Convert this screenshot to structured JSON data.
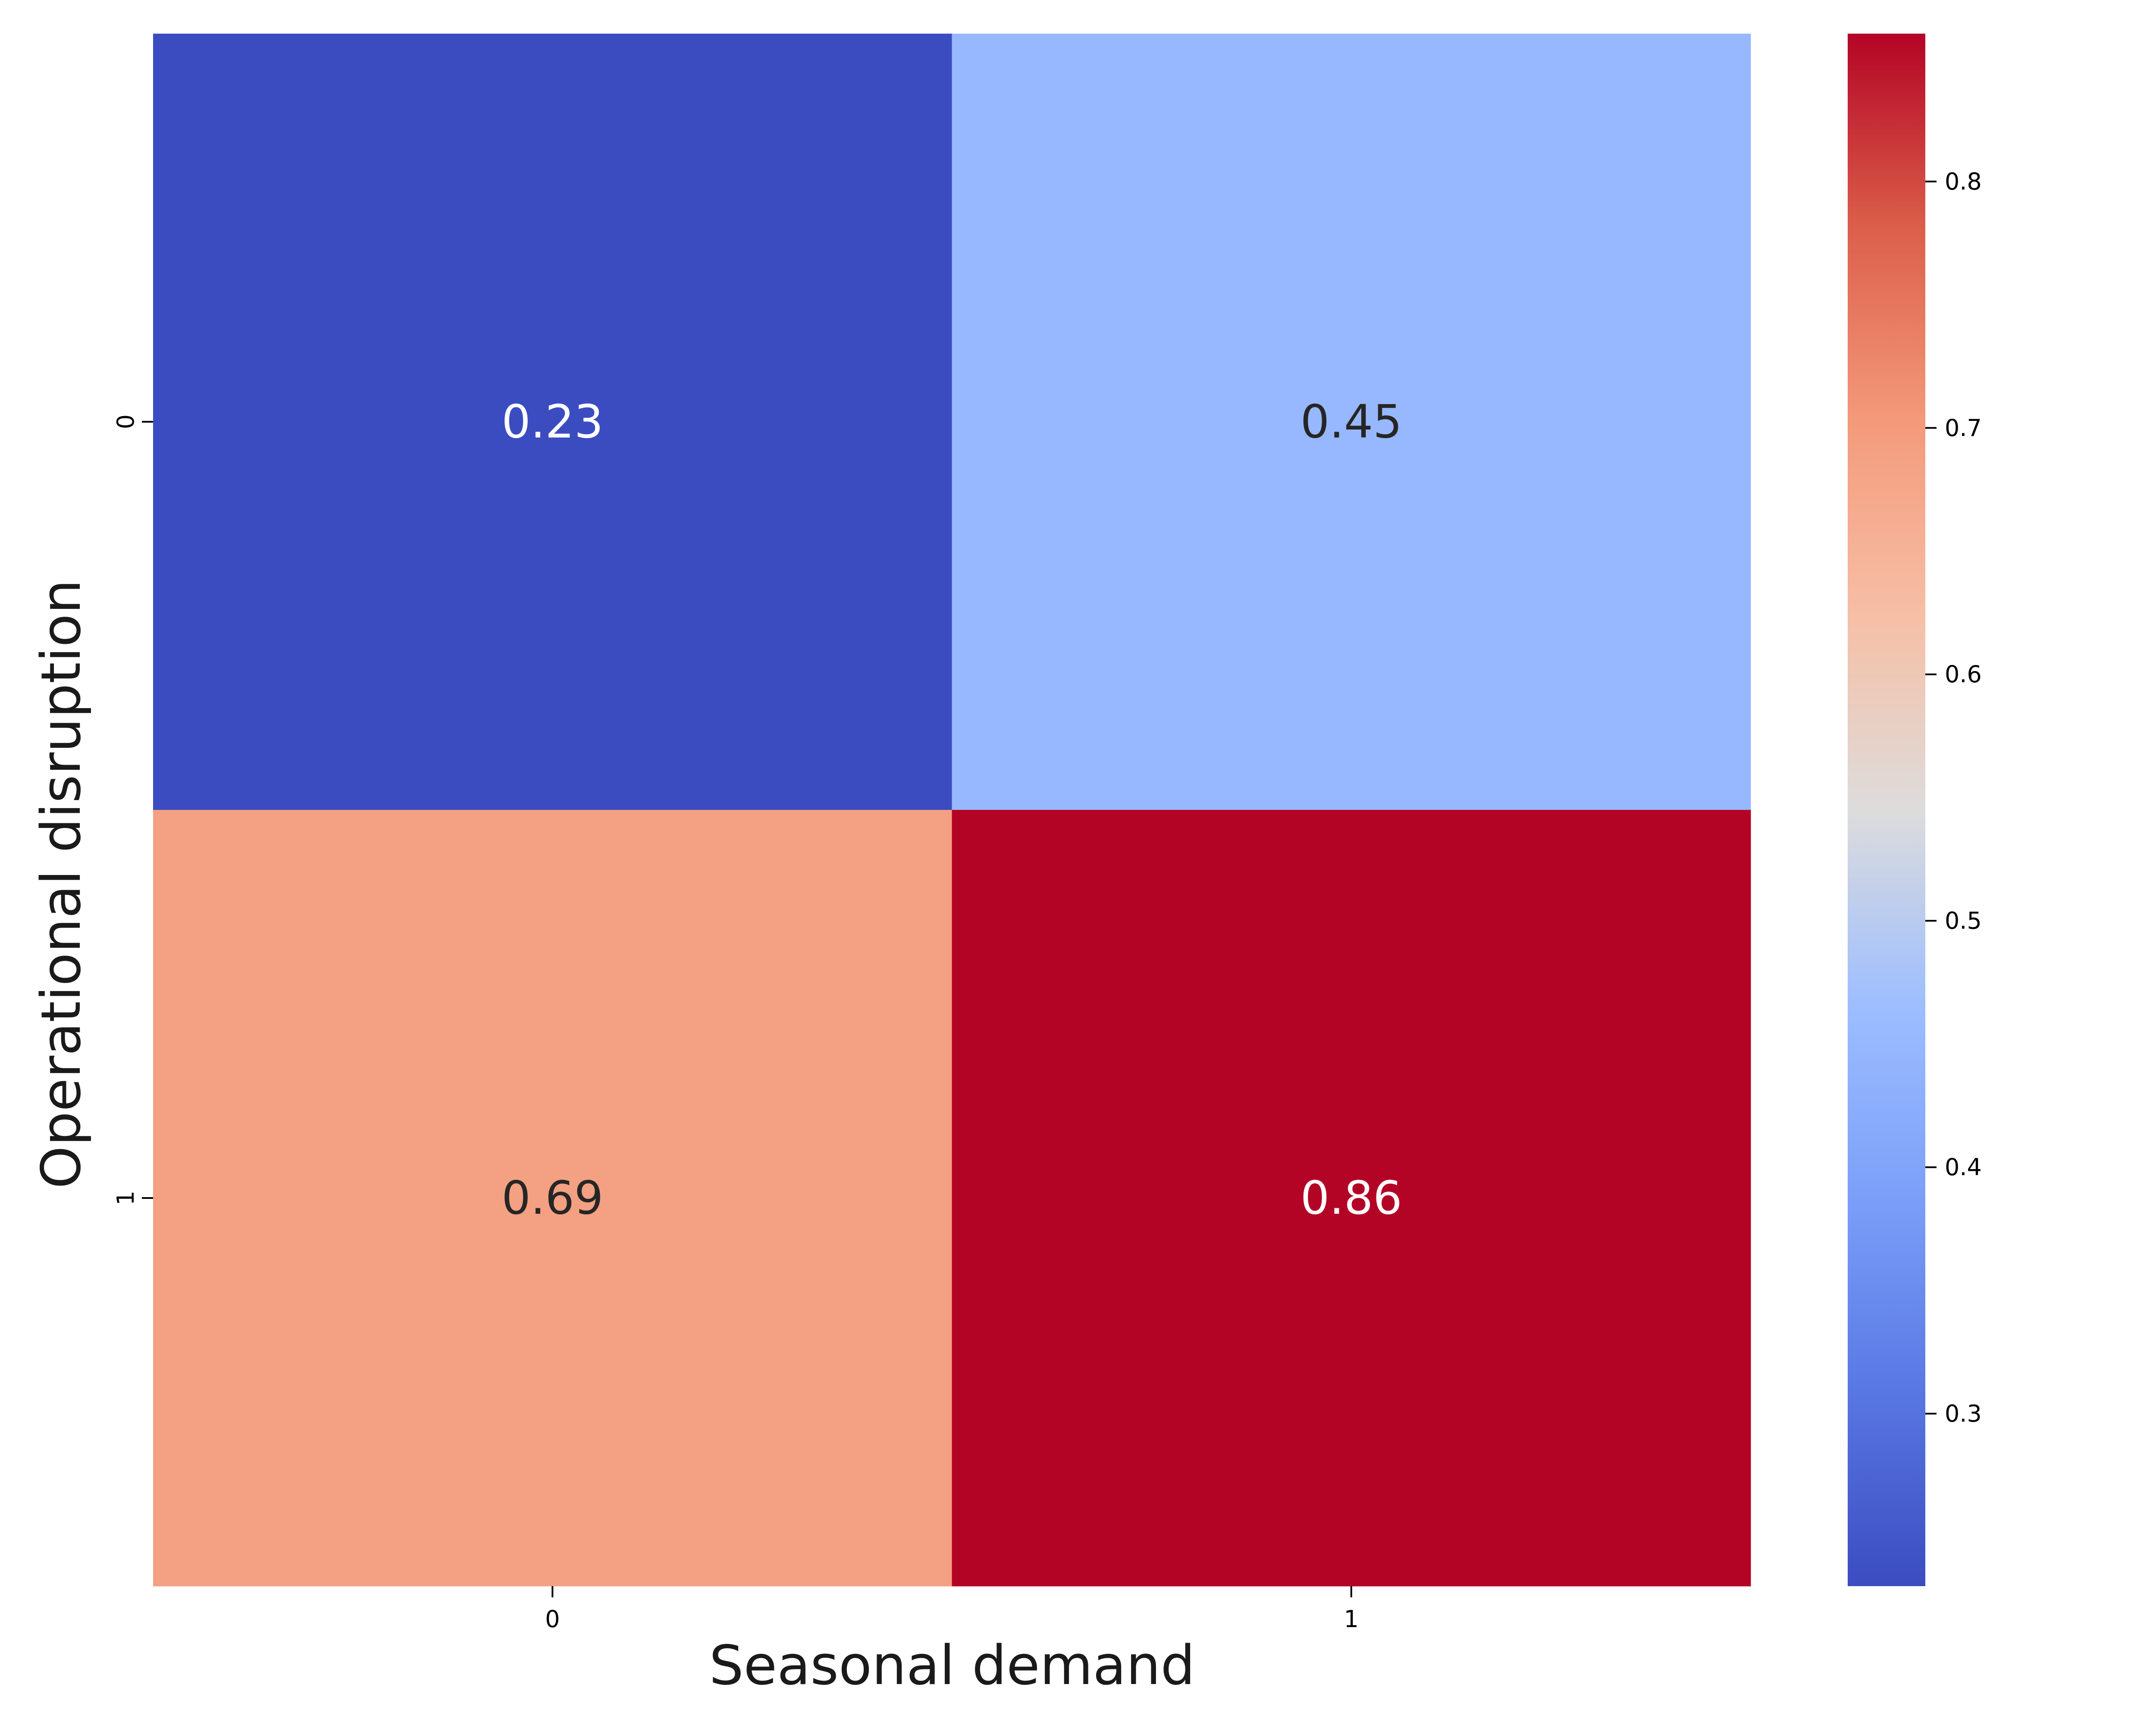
{
  "chart_data": {
    "type": "heatmap",
    "xlabel": "Seasonal demand",
    "ylabel": "Operational disruption",
    "x_categories": [
      "0",
      "1"
    ],
    "y_categories": [
      "0",
      "1"
    ],
    "values": [
      [
        0.23,
        0.45
      ],
      [
        0.69,
        0.86
      ]
    ],
    "annotations": [
      [
        "0.23",
        "0.45"
      ],
      [
        "0.69",
        "0.86"
      ]
    ],
    "colormap": "coolwarm",
    "colorbar": {
      "vmin": 0.23,
      "vmax": 0.86,
      "ticks": [
        0.3,
        0.4,
        0.5,
        0.6,
        0.7,
        0.8
      ],
      "tick_labels": [
        "0.3",
        "0.4",
        "0.5",
        "0.6",
        "0.7",
        "0.8"
      ]
    },
    "grid": false,
    "legend": "colorbar-right"
  }
}
